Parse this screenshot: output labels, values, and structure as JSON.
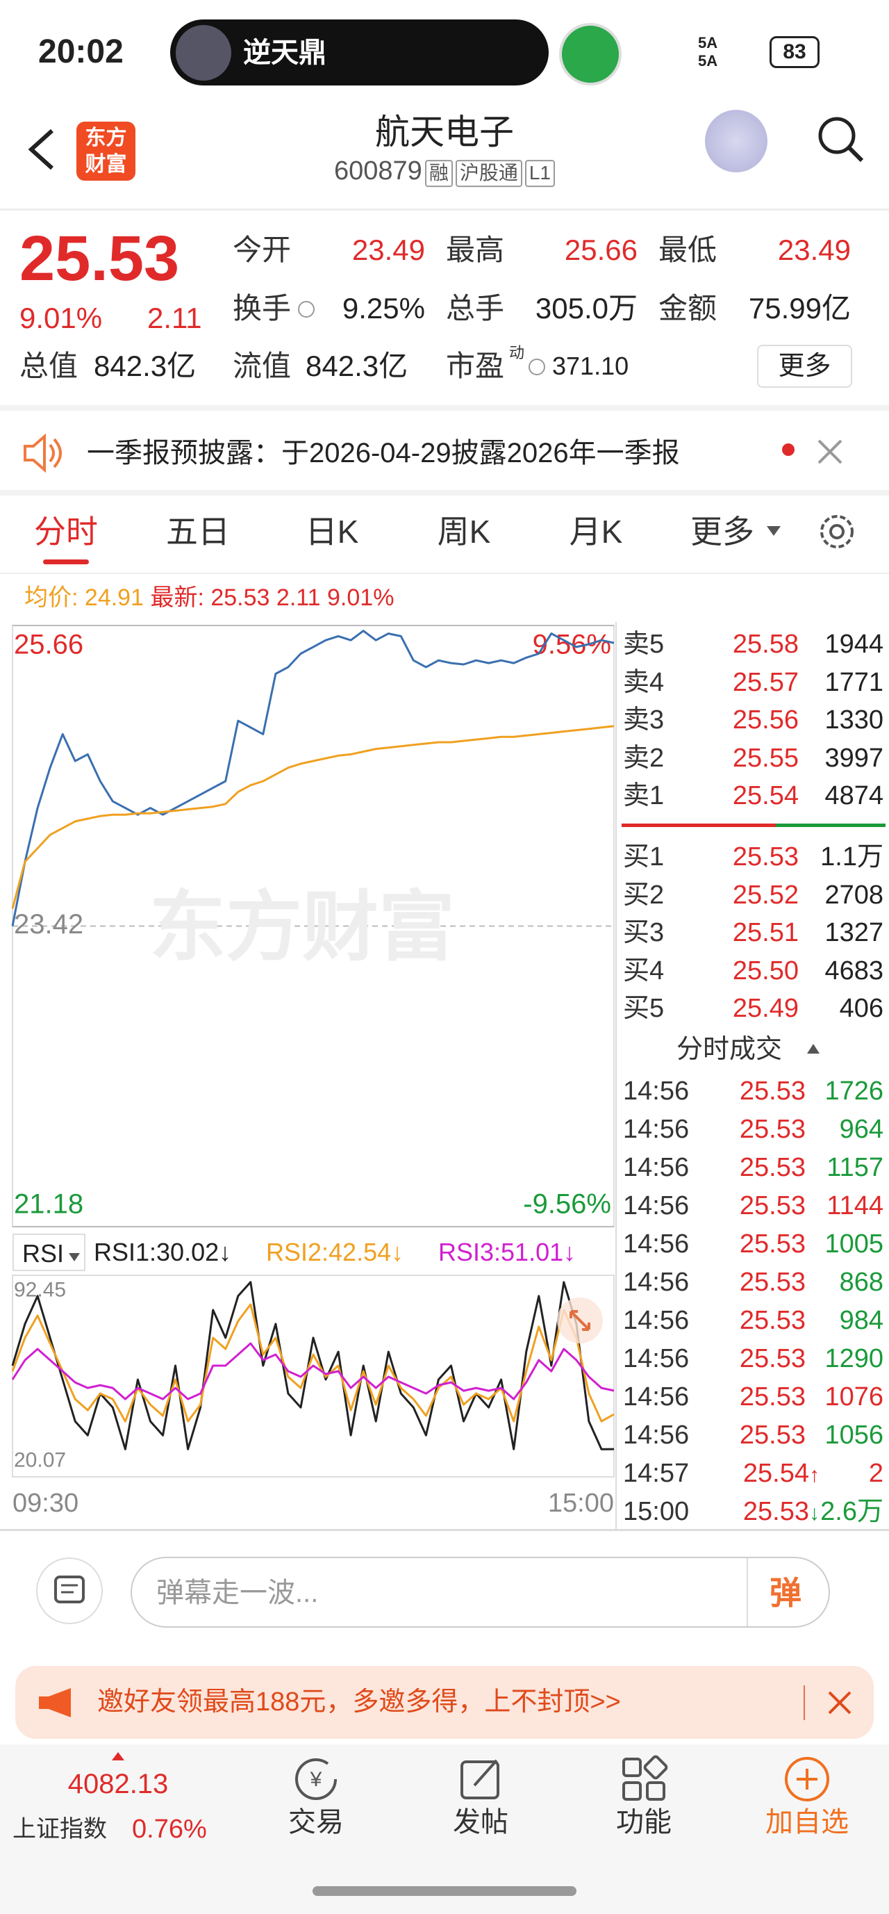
{
  "status_bar": {
    "time": "20:02",
    "live_name": "逆天鼎",
    "network": "5A",
    "battery": "83"
  },
  "header": {
    "logo_lines": [
      "东方",
      "财富"
    ],
    "title": "航天电子",
    "code": "600879",
    "tags": [
      "融",
      "沪股通",
      "L1"
    ]
  },
  "quote": {
    "price": "25.53",
    "change_pct": "9.01%",
    "change": "2.11",
    "fields": [
      {
        "label": "今开",
        "value": "23.49"
      },
      {
        "label": "最高",
        "value": "25.66"
      },
      {
        "label": "最低",
        "value": "23.49"
      },
      {
        "label": "换手",
        "value": "9.25%"
      },
      {
        "label": "总手",
        "value": "305.0万"
      },
      {
        "label": "金额",
        "value": "75.99亿"
      },
      {
        "label": "总值",
        "value": "842.3亿"
      },
      {
        "label": "流值",
        "value": "842.3亿"
      },
      {
        "label": "市盈",
        "sup": "动",
        "value": "371.10"
      }
    ],
    "more": "更多"
  },
  "notice": {
    "text": "一季报预披露：于2026-04-29披露2026年一季报"
  },
  "tabs": [
    "分时",
    "五日",
    "日K",
    "周K",
    "月K",
    "更多"
  ],
  "intraday_info": {
    "avg_label": "均价:",
    "avg": "24.91",
    "last_label": "最新:",
    "last": "25.53",
    "change": "2.11",
    "change_pct": "9.01%"
  },
  "watermark": "东方财富",
  "chart_data": [
    {
      "type": "line",
      "xlim": [
        0,
        240
      ],
      "ylim": [
        21.18,
        25.66
      ],
      "yticks": [
        25.66,
        23.42,
        21.18
      ],
      "ytick_colors": [
        "#e02a2a",
        "#888888",
        "#1a9a3a"
      ],
      "y2lim": [
        -9.56,
        9.56
      ],
      "y2ticks": [
        {
          "value": 9.56,
          "label": "9.56%"
        },
        {
          "value": -9.56,
          "label": "-9.56%"
        }
      ],
      "y2tick_colors": [
        "#e02a2a",
        "#1a9a3a"
      ],
      "grid": true,
      "x": [
        0,
        5,
        10,
        15,
        20,
        25,
        30,
        35,
        40,
        45,
        50,
        55,
        60,
        65,
        70,
        75,
        80,
        85,
        90,
        95,
        100,
        105,
        110,
        115,
        120,
        125,
        130,
        135,
        140,
        145,
        150,
        155,
        160,
        165,
        170,
        175,
        180,
        185,
        190,
        195,
        200,
        205,
        210,
        215,
        220,
        225,
        230,
        235,
        240
      ],
      "series": [
        {
          "color": "#3a6fb0",
          "values": [
            23.42,
            23.9,
            24.3,
            24.6,
            24.85,
            24.65,
            24.7,
            24.5,
            24.35,
            24.3,
            24.25,
            24.3,
            24.25,
            24.3,
            24.35,
            24.4,
            24.45,
            24.5,
            24.95,
            24.9,
            24.85,
            25.3,
            25.35,
            25.45,
            25.5,
            25.55,
            25.58,
            25.55,
            25.62,
            25.55,
            25.6,
            25.58,
            25.4,
            25.35,
            25.4,
            25.38,
            25.37,
            25.4,
            25.38,
            25.4,
            25.38,
            25.42,
            25.45,
            25.6,
            25.55,
            25.5,
            25.52,
            25.55,
            25.53
          ]
        },
        {
          "color": "#f0a020",
          "values": [
            23.55,
            23.9,
            24.0,
            24.1,
            24.15,
            24.2,
            24.22,
            24.24,
            24.25,
            24.25,
            24.26,
            24.26,
            24.27,
            24.28,
            24.29,
            24.3,
            24.31,
            24.33,
            24.42,
            24.47,
            24.5,
            24.55,
            24.6,
            24.63,
            24.65,
            24.67,
            24.69,
            24.7,
            24.72,
            24.74,
            24.75,
            24.76,
            24.77,
            24.78,
            24.79,
            24.79,
            24.8,
            24.81,
            24.82,
            24.83,
            24.83,
            24.84,
            24.85,
            24.86,
            24.87,
            24.88,
            24.89,
            24.9,
            24.91
          ]
        }
      ]
    },
    {
      "type": "line",
      "xlim": [
        0,
        240
      ],
      "ylim": [
        20.07,
        92.45
      ],
      "yticks": [
        92.45,
        20.07
      ],
      "ytick_colors": [
        "#888888",
        "#888888"
      ],
      "xticks": [
        {
          "value": 0,
          "label": "09:30"
        },
        {
          "value": 240,
          "label": "15:00"
        }
      ],
      "x": [
        0,
        5,
        10,
        15,
        20,
        25,
        30,
        35,
        40,
        45,
        50,
        55,
        60,
        65,
        70,
        75,
        80,
        85,
        90,
        95,
        100,
        105,
        110,
        115,
        120,
        125,
        130,
        135,
        140,
        145,
        150,
        155,
        160,
        165,
        170,
        175,
        180,
        185,
        190,
        195,
        200,
        205,
        210,
        215,
        220,
        225,
        230,
        235,
        240
      ],
      "series": [
        {
          "color": "#222222",
          "values": [
            60,
            75,
            85,
            70,
            55,
            40,
            35,
            50,
            45,
            30,
            55,
            40,
            35,
            60,
            30,
            45,
            80,
            70,
            85,
            90,
            60,
            75,
            50,
            45,
            70,
            55,
            65,
            35,
            60,
            40,
            65,
            50,
            45,
            35,
            55,
            60,
            40,
            50,
            45,
            55,
            30,
            65,
            85,
            60,
            90,
            75,
            40,
            30,
            30.02
          ]
        },
        {
          "color": "#f0a020",
          "values": [
            58,
            70,
            78,
            68,
            58,
            48,
            44,
            50,
            48,
            40,
            52,
            46,
            42,
            55,
            40,
            46,
            70,
            66,
            76,
            82,
            64,
            70,
            56,
            52,
            64,
            56,
            60,
            44,
            58,
            46,
            60,
            52,
            48,
            42,
            52,
            56,
            46,
            50,
            48,
            52,
            40,
            58,
            74,
            62,
            80,
            70,
            50,
            40,
            42.54
          ]
        },
        {
          "color": "#d020d0",
          "values": [
            55,
            62,
            66,
            62,
            58,
            54,
            52,
            53,
            52,
            48,
            52,
            50,
            48,
            52,
            48,
            50,
            60,
            60,
            64,
            68,
            62,
            64,
            58,
            56,
            60,
            57,
            58,
            52,
            56,
            52,
            56,
            54,
            52,
            50,
            53,
            54,
            51,
            52,
            51,
            52,
            48,
            54,
            62,
            58,
            66,
            62,
            56,
            52,
            51.01
          ]
        }
      ]
    }
  ],
  "rsi_header": {
    "selector": "RSI",
    "items": [
      {
        "text": "RSI1:30.02↓",
        "color": "#222222"
      },
      {
        "text": "RSI2:42.54↓",
        "color": "#f0a020"
      },
      {
        "text": "RSI3:51.01↓",
        "color": "#d020d0"
      }
    ]
  },
  "order_book": {
    "asks": [
      [
        "卖5",
        "25.58",
        "1944"
      ],
      [
        "卖4",
        "25.57",
        "1771"
      ],
      [
        "卖3",
        "25.56",
        "1330"
      ],
      [
        "卖2",
        "25.55",
        "3997"
      ],
      [
        "卖1",
        "25.54",
        "4874"
      ]
    ],
    "bids": [
      [
        "买1",
        "25.53",
        "1.1万"
      ],
      [
        "买2",
        "25.52",
        "2708"
      ],
      [
        "买3",
        "25.51",
        "1327"
      ],
      [
        "买4",
        "25.50",
        "4683"
      ],
      [
        "买5",
        "25.49",
        "406"
      ]
    ]
  },
  "trades_title": "分时成交",
  "trades": [
    {
      "time": "14:56",
      "price": "25.53",
      "volume": "1726",
      "color": "#1a9a3a"
    },
    {
      "time": "14:56",
      "price": "25.53",
      "volume": "964",
      "color": "#1a9a3a"
    },
    {
      "time": "14:56",
      "price": "25.53",
      "volume": "1157",
      "color": "#1a9a3a"
    },
    {
      "time": "14:56",
      "price": "25.53",
      "volume": "1144",
      "color": "#e02a2a"
    },
    {
      "time": "14:56",
      "price": "25.53",
      "volume": "1005",
      "color": "#1a9a3a"
    },
    {
      "time": "14:56",
      "price": "25.53",
      "volume": "868",
      "color": "#1a9a3a"
    },
    {
      "time": "14:56",
      "price": "25.53",
      "volume": "984",
      "color": "#1a9a3a"
    },
    {
      "time": "14:56",
      "price": "25.53",
      "volume": "1290",
      "color": "#1a9a3a"
    },
    {
      "time": "14:56",
      "price": "25.53",
      "volume": "1076",
      "color": "#e02a2a"
    },
    {
      "time": "14:56",
      "price": "25.53",
      "volume": "1056",
      "color": "#1a9a3a"
    },
    {
      "time": "14:57",
      "price": "25.54",
      "arrow": "↑",
      "volume": "2",
      "color": "#e02a2a"
    },
    {
      "time": "15:00",
      "price": "25.53",
      "arrow": "↓",
      "volume": "2.6万",
      "color": "#1a9a3a"
    }
  ],
  "comment": {
    "placeholder": "弹幕走一波...",
    "button": "弹"
  },
  "promo": {
    "text": "邀好友领最高188元，多邀多得，上不封顶>>"
  },
  "bottom_nav": {
    "index_value": "4082.13",
    "index_name": "上证指数",
    "index_change": "0.76%",
    "items": [
      "交易",
      "发帖",
      "功能",
      "加自选"
    ]
  }
}
